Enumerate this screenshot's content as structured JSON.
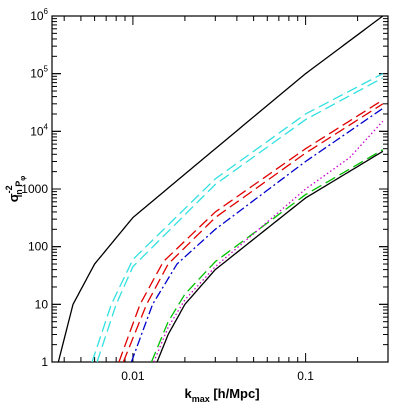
{
  "chart_data": {
    "type": "line",
    "xlabel": {
      "main": "k",
      "sub": "max",
      "rest": " [h/Mpc]"
    },
    "ylabel": {
      "main": "σ",
      "sub": "ln P",
      "subsub": "φ",
      "sup": "-2"
    },
    "x_log": true,
    "y_log": true,
    "xlim": [
      0.0034,
      0.3
    ],
    "ylim": [
      1,
      1000000
    ],
    "x_ticks": [
      {
        "value": 0.01,
        "label": "0.01"
      },
      {
        "value": 0.1,
        "label": "0.1"
      }
    ],
    "y_ticks": [
      {
        "value": 1,
        "label": "1"
      },
      {
        "value": 10,
        "label": "10"
      },
      {
        "value": 100,
        "label": "100"
      },
      {
        "value": 1000,
        "label": "1000"
      },
      {
        "value": 10000,
        "label": "10",
        "sup": "4"
      },
      {
        "value": 100000,
        "label": "10",
        "sup": "5"
      },
      {
        "value": 1000000,
        "label": "10",
        "sup": "6"
      }
    ],
    "grid": false,
    "series": [
      {
        "color": "#000000",
        "style": "solid",
        "points": [
          [
            0.0037,
            1
          ],
          [
            0.0045,
            10
          ],
          [
            0.006,
            50
          ],
          [
            0.01,
            320
          ],
          [
            0.03,
            5000
          ],
          [
            0.1,
            100000
          ],
          [
            0.28,
            1000000
          ]
        ]
      },
      {
        "color": "#33e0e0",
        "style": "dashed",
        "points": [
          [
            0.0058,
            1
          ],
          [
            0.0075,
            10
          ],
          [
            0.01,
            60
          ],
          [
            0.03,
            1500
          ],
          [
            0.1,
            20000
          ],
          [
            0.28,
            100000
          ]
        ]
      },
      {
        "color": "#33e0e0",
        "style": "dashed",
        "points": [
          [
            0.0062,
            1
          ],
          [
            0.008,
            10
          ],
          [
            0.01,
            45
          ],
          [
            0.03,
            1200
          ],
          [
            0.1,
            16000
          ],
          [
            0.28,
            85000
          ]
        ]
      },
      {
        "color": "#e00000",
        "style": "dashed",
        "points": [
          [
            0.0083,
            1
          ],
          [
            0.011,
            10
          ],
          [
            0.015,
            55
          ],
          [
            0.03,
            400
          ],
          [
            0.1,
            5000
          ],
          [
            0.28,
            35000
          ]
        ]
      },
      {
        "color": "#e00000",
        "style": "dashed",
        "points": [
          [
            0.0088,
            1
          ],
          [
            0.012,
            10
          ],
          [
            0.016,
            50
          ],
          [
            0.03,
            320
          ],
          [
            0.1,
            4200
          ],
          [
            0.28,
            30000
          ]
        ]
      },
      {
        "color": "#0000cc",
        "style": "dashdot",
        "points": [
          [
            0.0098,
            1
          ],
          [
            0.013,
            10
          ],
          [
            0.018,
            50
          ],
          [
            0.03,
            200
          ],
          [
            0.1,
            3000
          ],
          [
            0.28,
            25000
          ]
        ]
      },
      {
        "color": "#00c000",
        "style": "dashed",
        "points": [
          [
            0.0128,
            1
          ],
          [
            0.016,
            5
          ],
          [
            0.02,
            15
          ],
          [
            0.03,
            55
          ],
          [
            0.1,
            800
          ],
          [
            0.28,
            4800
          ]
        ]
      },
      {
        "color": "#cc00cc",
        "style": "dotted",
        "points": [
          [
            0.0132,
            1
          ],
          [
            0.016,
            4
          ],
          [
            0.02,
            12
          ],
          [
            0.03,
            45
          ],
          [
            0.1,
            1000
          ],
          [
            0.18,
            3500
          ],
          [
            0.28,
            15000
          ]
        ]
      },
      {
        "color": "#000000",
        "style": "solid",
        "points": [
          [
            0.0138,
            1
          ],
          [
            0.016,
            3
          ],
          [
            0.02,
            10
          ],
          [
            0.03,
            40
          ],
          [
            0.1,
            700
          ],
          [
            0.28,
            4500
          ]
        ]
      }
    ]
  }
}
